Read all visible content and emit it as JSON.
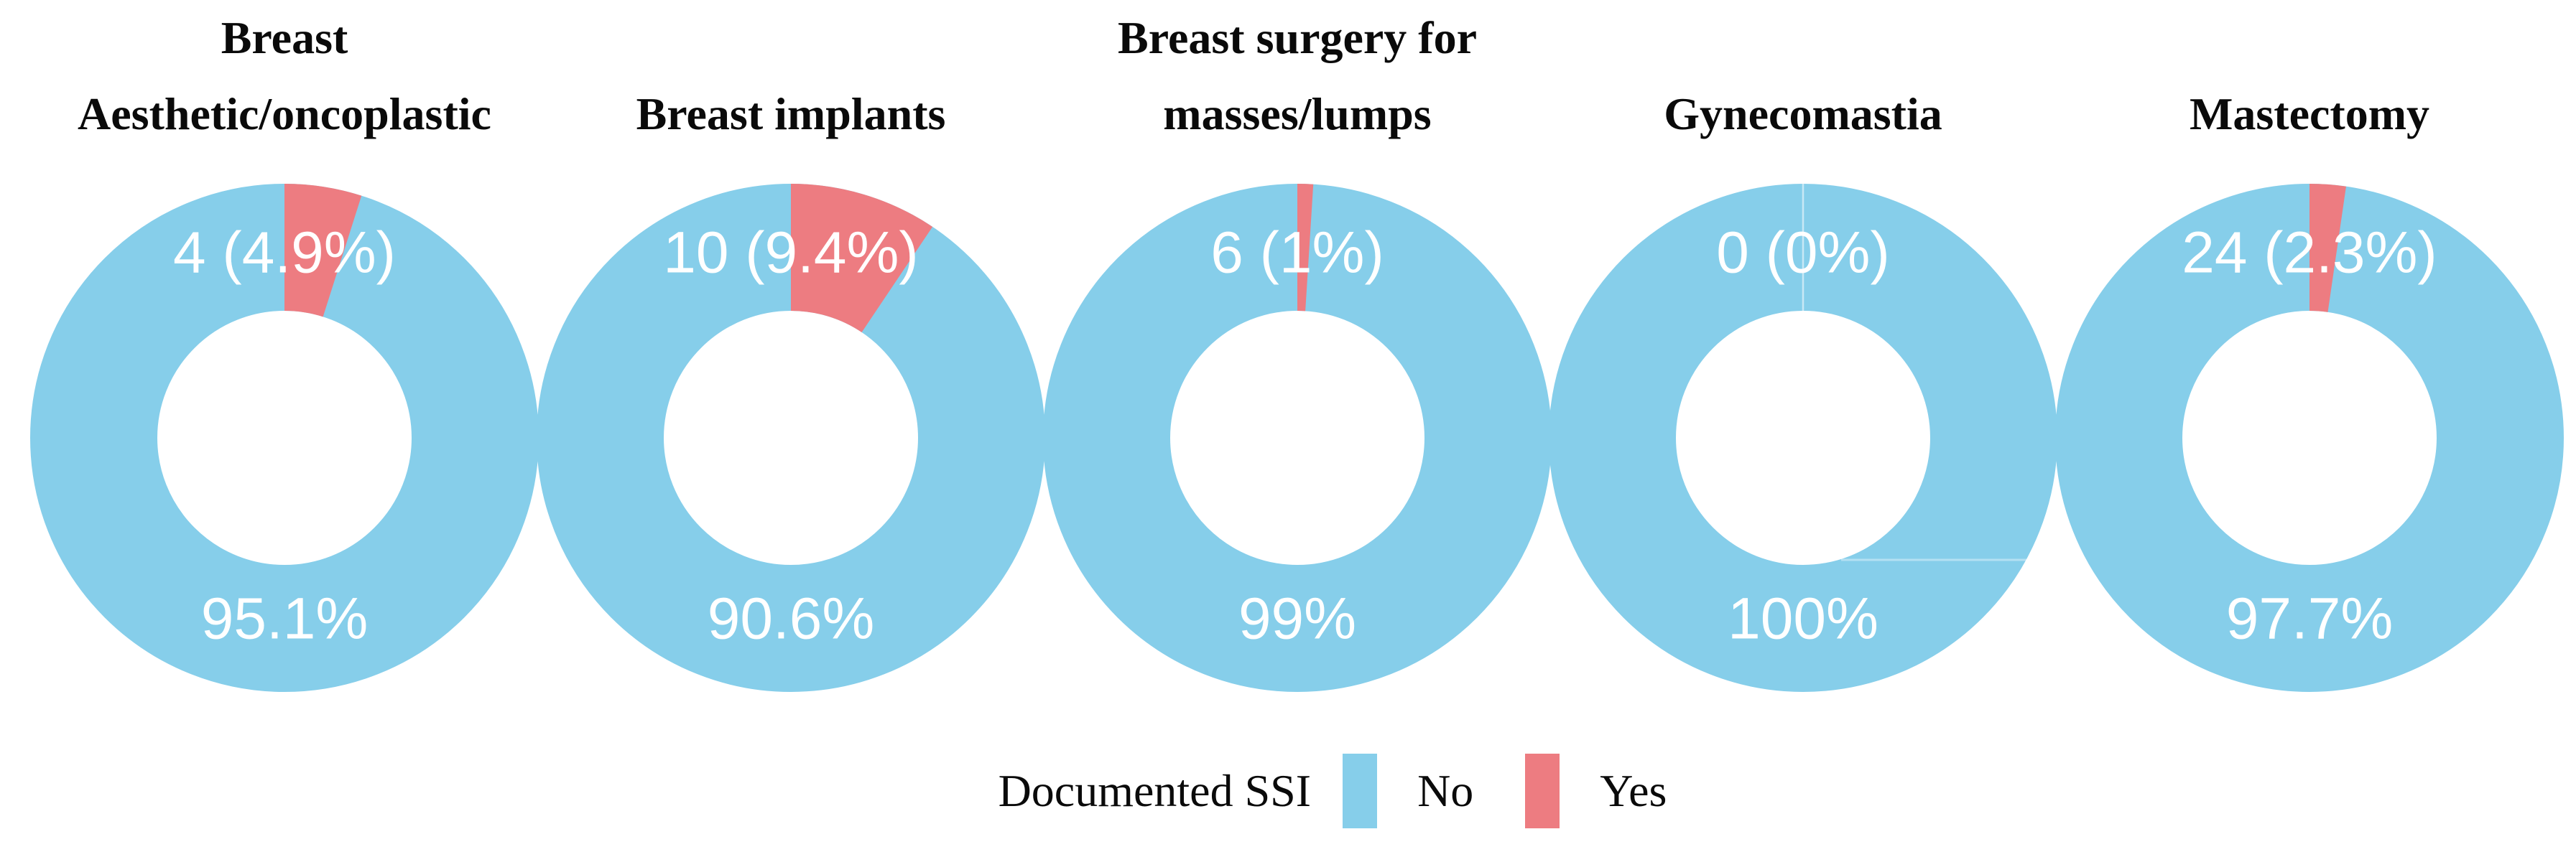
{
  "figure": {
    "background": "#ffffff",
    "label_text_color": "#ffffff",
    "title_text_color": "#0a0a0a"
  },
  "colors": {
    "no": "#86CEEA",
    "yes": "#ED7C81"
  },
  "legend": {
    "title": "Documented SSI",
    "no_label": "No",
    "yes_label": "Yes",
    "position": "bottom"
  },
  "chart_data": [
    {
      "type": "pie",
      "title": "Breast Aesthetic/oncoplastic",
      "title_lines": [
        "Breast",
        "Aesthetic/oncoplastic"
      ],
      "categories": [
        "No",
        "Yes"
      ],
      "values": [
        95.1,
        4.9
      ],
      "yes_count": 4,
      "inner_label_top": "4 (4.9%)",
      "inner_label_bottom": "95.1%"
    },
    {
      "type": "pie",
      "title": "Breast implants",
      "title_lines": [
        "Breast implants"
      ],
      "categories": [
        "No",
        "Yes"
      ],
      "values": [
        90.6,
        9.4
      ],
      "yes_count": 10,
      "inner_label_top": "10 (9.4%)",
      "inner_label_bottom": "90.6%"
    },
    {
      "type": "pie",
      "title": "Breast surgery for masses/lumps",
      "title_lines": [
        "Breast surgery for",
        "masses/lumps"
      ],
      "categories": [
        "No",
        "Yes"
      ],
      "values": [
        99.0,
        1.0
      ],
      "yes_count": 6,
      "inner_label_top": "6 (1%)",
      "inner_label_bottom": "99%"
    },
    {
      "type": "pie",
      "title": "Gynecomastia",
      "title_lines": [
        "Gynecomastia"
      ],
      "categories": [
        "No",
        "Yes"
      ],
      "values": [
        100.0,
        0.0
      ],
      "yes_count": 0,
      "inner_label_top": "0 (0%)",
      "inner_label_bottom": "100%"
    },
    {
      "type": "pie",
      "title": "Mastectomy",
      "title_lines": [
        "Mastectomy"
      ],
      "categories": [
        "No",
        "Yes"
      ],
      "values": [
        97.7,
        2.3
      ],
      "yes_count": 24,
      "inner_label_top": "24 (2.3%)",
      "inner_label_bottom": "97.7%"
    }
  ]
}
